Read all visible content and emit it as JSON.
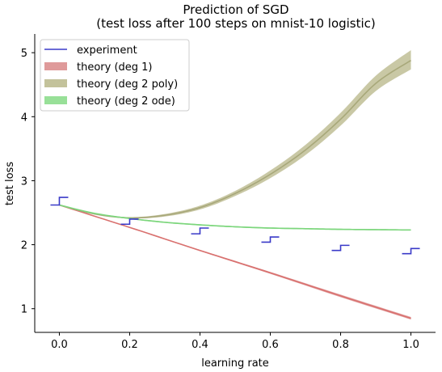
{
  "chart_data": {
    "type": "line",
    "title": "Prediction of SGD",
    "subtitle": "(test loss after 100 steps on mnist-10 logistic)",
    "xlabel": "learning rate",
    "ylabel": "test loss",
    "xlim": [
      -0.07,
      1.07
    ],
    "ylim": [
      0.63,
      5.28
    ],
    "xticks": [
      0.0,
      0.2,
      0.4,
      0.6,
      0.8,
      1.0
    ],
    "xtick_labels": [
      "0.0",
      "0.2",
      "0.4",
      "0.6",
      "0.8",
      "1.0"
    ],
    "yticks": [
      1,
      2,
      3,
      4,
      5
    ],
    "ytick_labels": [
      "1",
      "2",
      "3",
      "4",
      "5"
    ],
    "grid": false,
    "legend_position": "top-left",
    "legend": [
      {
        "label": "experiment",
        "color": "#3a3ac8",
        "style": "line"
      },
      {
        "label": "theory (deg 1)",
        "color": "#df9a9a",
        "style": "patch"
      },
      {
        "label": "theory (deg 2 poly)",
        "color": "#c3c29b",
        "style": "patch"
      },
      {
        "label": "theory (deg 2 ode)",
        "color": "#98e098",
        "style": "patch"
      }
    ],
    "series": [
      {
        "name": "experiment",
        "color": "#3a3ac8",
        "points": [
          {
            "x": 0.0,
            "low": 2.62,
            "high": 2.74
          },
          {
            "x": 0.2,
            "low": 2.32,
            "high": 2.4
          },
          {
            "x": 0.4,
            "low": 2.17,
            "high": 2.26
          },
          {
            "x": 0.6,
            "low": 2.04,
            "high": 2.12
          },
          {
            "x": 0.8,
            "low": 1.91,
            "high": 1.99
          },
          {
            "x": 1.0,
            "low": 1.86,
            "high": 1.94
          }
        ]
      },
      {
        "name": "theory (deg 1)",
        "color": "#d9716f",
        "band_color": "#df9a9a",
        "x": [
          0.0,
          0.2,
          0.4,
          0.6,
          0.8,
          1.0
        ],
        "y": [
          2.62,
          2.27,
          1.91,
          1.56,
          1.2,
          0.85
        ],
        "y_low": [
          2.62,
          2.265,
          1.9,
          1.545,
          1.18,
          0.83
        ],
        "y_high": [
          2.62,
          2.275,
          1.92,
          1.575,
          1.22,
          0.87
        ]
      },
      {
        "name": "theory (deg 2 poly)",
        "color": "#a8a87a",
        "band_color": "#c3c29b",
        "x": [
          0.0,
          0.1,
          0.2,
          0.3,
          0.4,
          0.5,
          0.6,
          0.7,
          0.8,
          0.9,
          1.0
        ],
        "y": [
          2.62,
          2.48,
          2.42,
          2.46,
          2.58,
          2.8,
          3.1,
          3.48,
          3.96,
          4.52,
          4.88
        ],
        "y_low": [
          2.62,
          2.48,
          2.41,
          2.44,
          2.55,
          2.76,
          3.04,
          3.4,
          3.86,
          4.4,
          4.74
        ],
        "y_high": [
          2.62,
          2.48,
          2.43,
          2.48,
          2.61,
          2.84,
          3.16,
          3.56,
          4.06,
          4.64,
          5.04
        ]
      },
      {
        "name": "theory (deg 2 ode)",
        "color": "#7cd67c",
        "band_color": "#98e098",
        "x": [
          0.0,
          0.1,
          0.2,
          0.3,
          0.4,
          0.5,
          0.6,
          0.7,
          0.8,
          0.9,
          1.0
        ],
        "y": [
          2.62,
          2.49,
          2.41,
          2.35,
          2.31,
          2.28,
          2.26,
          2.25,
          2.24,
          2.235,
          2.23
        ],
        "y_low": [
          2.62,
          2.485,
          2.4,
          2.34,
          2.3,
          2.27,
          2.25,
          2.24,
          2.23,
          2.225,
          2.22
        ],
        "y_high": [
          2.62,
          2.495,
          2.42,
          2.36,
          2.32,
          2.29,
          2.27,
          2.26,
          2.25,
          2.245,
          2.24
        ]
      }
    ]
  }
}
